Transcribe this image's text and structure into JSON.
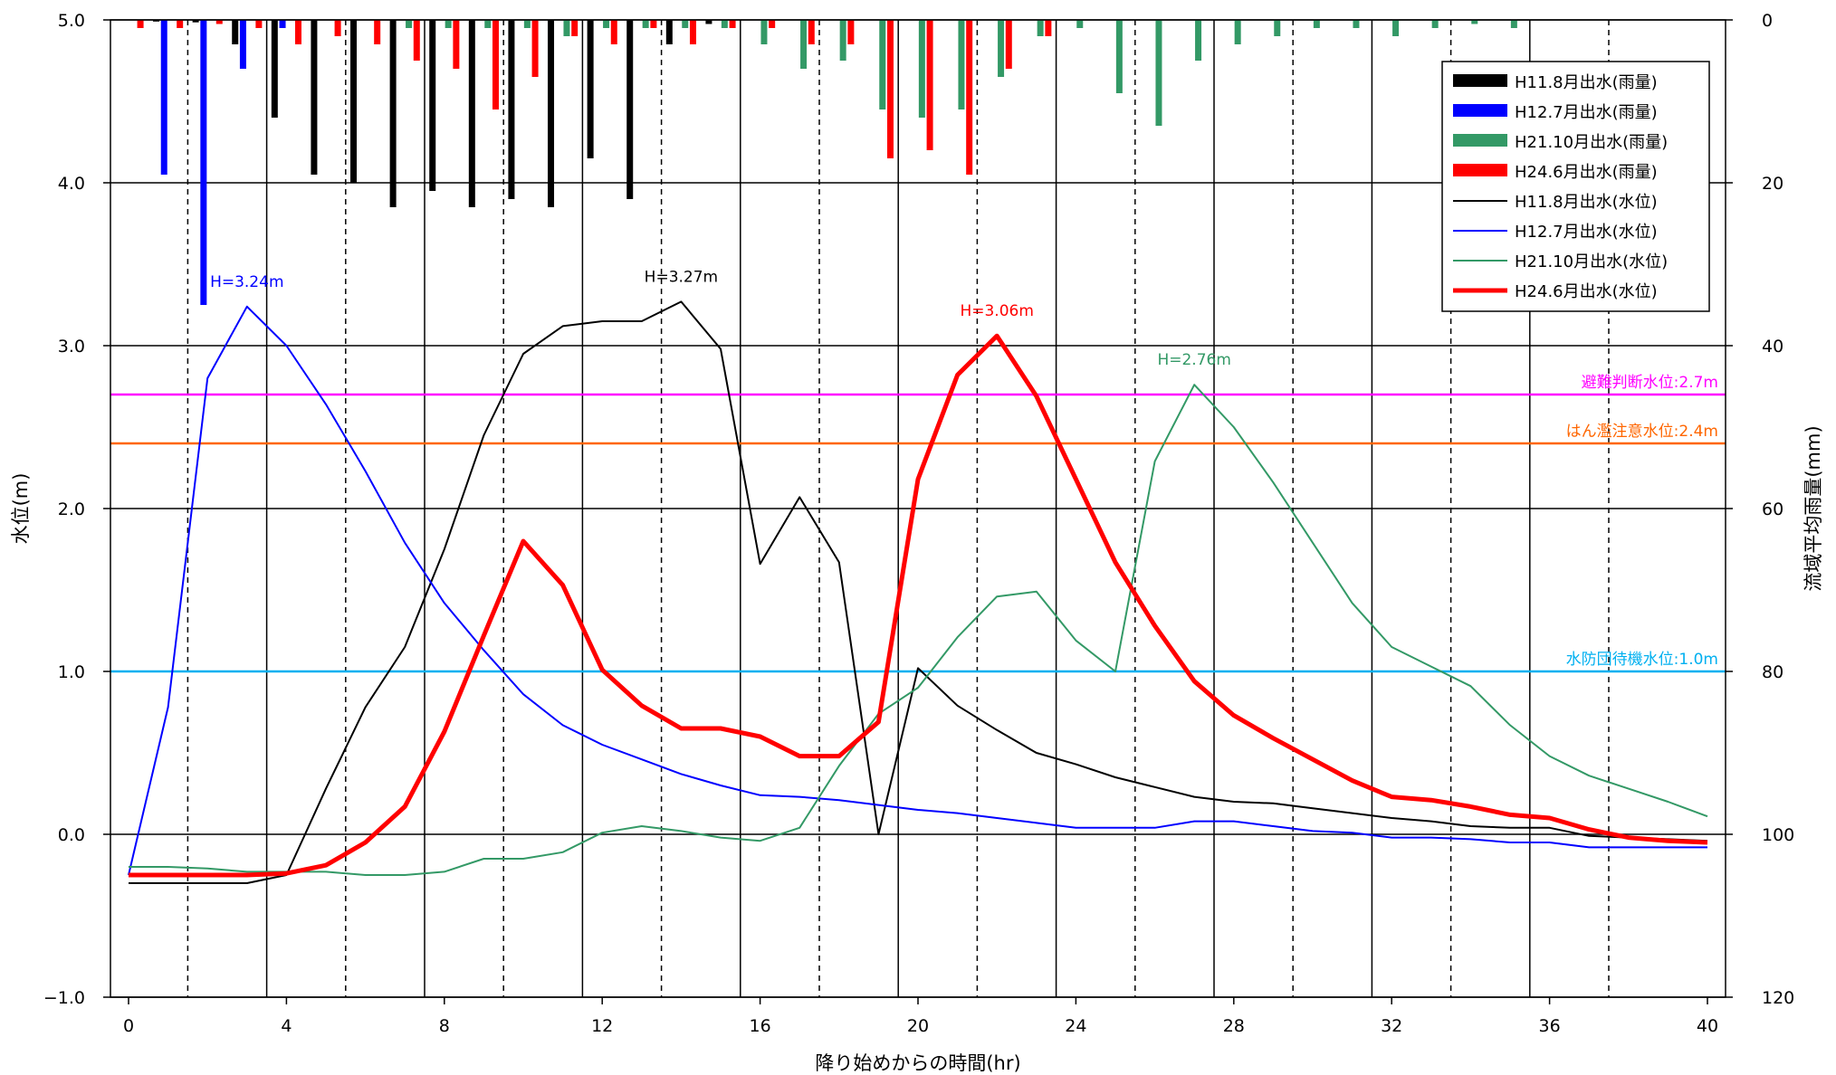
{
  "chart_data": {
    "type": "bar+line",
    "xlabel": "降り始めからの時間(hr)",
    "ylabel_left": "水位(m)",
    "ylabel_right": "流域平均雨量(mm)",
    "xlim": [
      0,
      40
    ],
    "x_ticks": [
      0,
      4,
      8,
      12,
      16,
      20,
      24,
      28,
      32,
      36,
      40
    ],
    "ylim_left": [
      -1.0,
      5.0
    ],
    "y_ticks_left": [
      "−1.0",
      "0.0",
      "1.0",
      "2.0",
      "3.0",
      "4.0",
      "5.0"
    ],
    "ylim_right": [
      120,
      0
    ],
    "y_ticks_right": [
      0,
      20,
      40,
      60,
      80,
      100,
      120
    ],
    "grid": true,
    "legend_position": "top-right",
    "colors": {
      "H11": "#000000",
      "H12": "#0000ff",
      "H21": "#339966",
      "H24": "#ff0000",
      "evac": "#ff00ff",
      "flood": "#ff6600",
      "standby": "#00b0f0"
    },
    "legend": [
      {
        "label": "H11.8月出水(雨量)",
        "kind": "bar",
        "color": "#000000"
      },
      {
        "label": "H12.7月出水(雨量)",
        "kind": "bar",
        "color": "#0000ff"
      },
      {
        "label": "H21.10月出水(雨量)",
        "kind": "bar",
        "color": "#339966"
      },
      {
        "label": "H24.6月出水(雨量)",
        "kind": "bar",
        "color": "#ff0000"
      },
      {
        "label": "H11.8月出水(水位)",
        "kind": "line",
        "color": "#000000",
        "width": 2
      },
      {
        "label": "H12.7月出水(水位)",
        "kind": "line",
        "color": "#0000ff",
        "width": 2
      },
      {
        "label": "H21.10月出水(水位)",
        "kind": "line",
        "color": "#339966",
        "width": 2
      },
      {
        "label": "H24.6月出水(水位)",
        "kind": "line",
        "color": "#ff0000",
        "width": 5
      }
    ],
    "reference_lines": [
      {
        "label": "避難判断水位:2.7m",
        "value": 2.7,
        "color": "#ff00ff"
      },
      {
        "label": "はん濫注意水位:2.4m",
        "value": 2.4,
        "color": "#ff6600"
      },
      {
        "label": "水防団待機水位:1.0m",
        "value": 1.0,
        "color": "#00b0f0"
      }
    ],
    "annotations": [
      {
        "label": "H=3.24m",
        "x": 3.0,
        "y": 3.24,
        "color": "#0000ff"
      },
      {
        "label": "H=3.27m",
        "x": 14.0,
        "y": 3.27,
        "color": "#000000"
      },
      {
        "label": "H=3.06m",
        "x": 22.0,
        "y": 3.06,
        "color": "#ff0000"
      },
      {
        "label": "H=2.76m",
        "x": 27.0,
        "y": 2.76,
        "color": "#339966"
      }
    ],
    "rainfall_series": [
      {
        "name": "H11.8月出水(雨量)",
        "color": "#000000",
        "offset": -0.3,
        "x": [
          1,
          2,
          3,
          4,
          5,
          6,
          7,
          8,
          9,
          10,
          11,
          12,
          13,
          14,
          15
        ],
        "values": [
          0.2,
          0.3,
          3,
          12,
          19,
          20,
          23,
          21,
          23,
          22,
          23,
          17,
          22,
          3,
          0.5
        ]
      },
      {
        "name": "H12.7月出水(雨量)",
        "color": "#0000ff",
        "offset": -0.1,
        "x": [
          1,
          2,
          3,
          4
        ],
        "values": [
          19,
          35,
          6,
          1
        ]
      },
      {
        "name": "H21.10月出水(雨量)",
        "color": "#339966",
        "offset": 0.1,
        "x": [
          7,
          8,
          9,
          10,
          11,
          12,
          13,
          14,
          15,
          16,
          17,
          18,
          19,
          20,
          21,
          22,
          23,
          24,
          25,
          26,
          27,
          28,
          29,
          30,
          31,
          32,
          33,
          34,
          35
        ],
        "values": [
          1,
          1,
          1,
          1,
          2,
          1,
          1,
          1,
          1,
          3,
          6,
          5,
          11,
          12,
          11,
          7,
          2,
          1,
          9,
          13,
          5,
          3,
          2,
          1,
          1,
          2,
          1,
          0.5,
          1
        ]
      },
      {
        "name": "H24.6月出水(雨量)",
        "color": "#ff0000",
        "offset": 0.3,
        "x": [
          0,
          1,
          2,
          3,
          4,
          5,
          6,
          7,
          8,
          9,
          10,
          11,
          12,
          13,
          14,
          15,
          16,
          17,
          18,
          19,
          20,
          21,
          22,
          23
        ],
        "values": [
          1,
          1,
          0.5,
          1,
          3,
          2,
          3,
          5,
          6,
          11,
          7,
          2,
          3,
          1,
          3,
          1,
          1,
          3,
          3,
          17,
          16,
          19,
          6,
          2
        ]
      }
    ],
    "water_level_series": [
      {
        "name": "H11.8月出水(水位)",
        "color": "#000000",
        "width": 2,
        "x": [
          0,
          1,
          2,
          3,
          4,
          5,
          6,
          7,
          8,
          9,
          10,
          11,
          12,
          13,
          14,
          15,
          16,
          17,
          18,
          19,
          20,
          21,
          22,
          23,
          24,
          25,
          26,
          27,
          28,
          29,
          30,
          31,
          32,
          33,
          34,
          35,
          36,
          37,
          38,
          39,
          40
        ],
        "values": [
          -0.3,
          -0.3,
          -0.3,
          -0.3,
          -0.25,
          0.28,
          0.78,
          1.15,
          1.75,
          2.45,
          2.95,
          3.12,
          3.15,
          3.15,
          3.27,
          2.98,
          1.66,
          2.07,
          1.67,
          0.0,
          1.02,
          0.79,
          0.64,
          0.5,
          0.43,
          0.35,
          0.29,
          0.23,
          0.2,
          0.19,
          0.16,
          0.13,
          0.1,
          0.08,
          0.05,
          0.04,
          0.04,
          -0.01,
          -0.02,
          -0.03,
          -0.04
        ]
      },
      {
        "name": "H12.7月出水(水位)",
        "color": "#0000ff",
        "width": 2,
        "x": [
          0,
          1,
          2,
          3,
          4,
          5,
          6,
          7,
          8,
          9,
          10,
          11,
          12,
          13,
          14,
          15,
          16,
          17,
          18,
          19,
          20,
          21,
          22,
          23,
          24,
          25,
          26,
          27,
          28,
          29,
          30,
          31,
          32,
          33,
          34,
          35,
          36,
          37,
          38,
          39,
          40
        ],
        "values": [
          -0.25,
          0.78,
          2.8,
          3.24,
          3.0,
          2.64,
          2.23,
          1.79,
          1.42,
          1.13,
          0.86,
          0.67,
          0.55,
          0.46,
          0.37,
          0.3,
          0.24,
          0.23,
          0.21,
          0.18,
          0.15,
          0.13,
          0.1,
          0.07,
          0.04,
          0.04,
          0.04,
          0.08,
          0.08,
          0.05,
          0.02,
          0.01,
          -0.02,
          -0.02,
          -0.03,
          -0.05,
          -0.05,
          -0.08,
          -0.08,
          -0.08,
          -0.08
        ]
      },
      {
        "name": "H21.10月出水(水位)",
        "color": "#339966",
        "width": 2,
        "x": [
          0,
          1,
          2,
          3,
          4,
          5,
          6,
          7,
          8,
          9,
          10,
          11,
          12,
          13,
          14,
          15,
          16,
          17,
          18,
          19,
          20,
          21,
          22,
          23,
          24,
          25,
          26,
          27,
          28,
          29,
          30,
          31,
          32,
          33,
          34,
          35,
          36,
          37,
          38,
          39,
          40
        ],
        "values": [
          -0.2,
          -0.2,
          -0.21,
          -0.23,
          -0.23,
          -0.23,
          -0.25,
          -0.25,
          -0.23,
          -0.15,
          -0.15,
          -0.11,
          0.01,
          0.05,
          0.02,
          -0.02,
          -0.04,
          0.04,
          0.42,
          0.74,
          0.9,
          1.21,
          1.46,
          1.49,
          1.19,
          1.0,
          2.29,
          2.76,
          2.5,
          2.16,
          1.79,
          1.42,
          1.15,
          1.03,
          0.91,
          0.67,
          0.48,
          0.36,
          0.28,
          0.2,
          0.11
        ]
      },
      {
        "name": "H24.6月出水(水位)",
        "color": "#ff0000",
        "width": 5,
        "x": [
          0,
          1,
          2,
          3,
          4,
          5,
          6,
          7,
          8,
          9,
          10,
          11,
          12,
          13,
          14,
          15,
          16,
          17,
          18,
          19,
          20,
          21,
          22,
          23,
          24,
          25,
          26,
          27,
          28,
          29,
          30,
          31,
          32,
          33,
          34,
          35,
          36,
          37,
          38,
          39,
          40
        ],
        "values": [
          -0.25,
          -0.25,
          -0.25,
          -0.25,
          -0.24,
          -0.19,
          -0.05,
          0.17,
          0.63,
          1.22,
          1.8,
          1.53,
          1.01,
          0.79,
          0.65,
          0.65,
          0.6,
          0.48,
          0.48,
          0.69,
          2.18,
          2.82,
          3.06,
          2.69,
          2.18,
          1.67,
          1.28,
          0.94,
          0.73,
          0.59,
          0.46,
          0.33,
          0.23,
          0.21,
          0.17,
          0.12,
          0.1,
          0.03,
          -0.02,
          -0.04,
          -0.05
        ]
      }
    ]
  }
}
